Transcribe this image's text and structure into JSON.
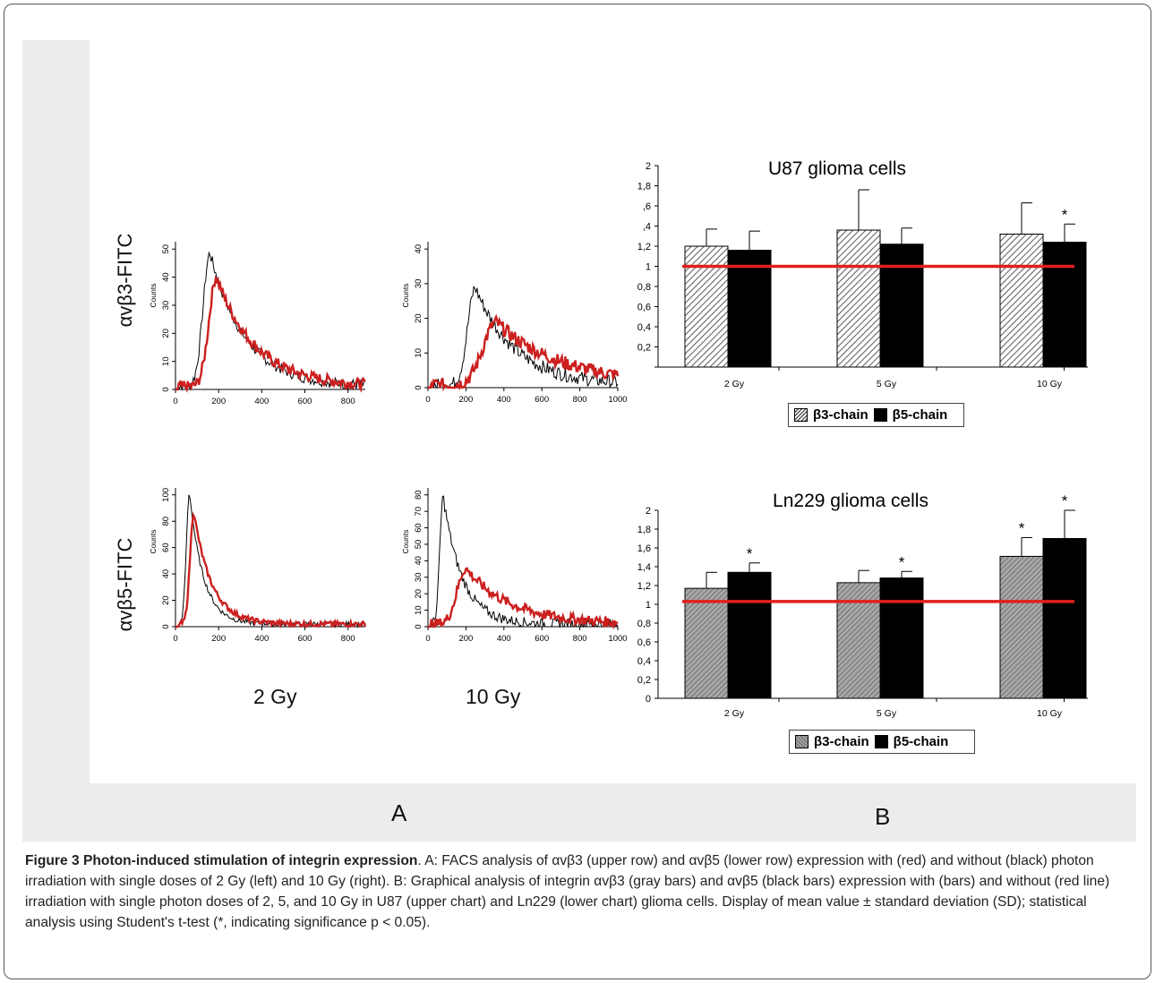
{
  "panel_labels": {
    "a": "A",
    "b": "B"
  },
  "row_labels": {
    "top": "αvβ3-FITC",
    "bottom": "αvβ5-FITC"
  },
  "dose_labels": {
    "left": "2 Gy",
    "right": "10 Gy"
  },
  "facs": {
    "ylabel": "Counts",
    "plots": [
      {
        "id": "top-2gy",
        "xticks": [
          "0",
          "200",
          "400",
          "600",
          "800"
        ],
        "yticks": [
          "0",
          "10",
          "20",
          "30",
          "40",
          "50"
        ]
      },
      {
        "id": "top-10gy",
        "xticks": [
          "0",
          "200",
          "400",
          "600",
          "800",
          "1000"
        ],
        "yticks": [
          "0",
          "10",
          "20",
          "30",
          "40"
        ]
      },
      {
        "id": "bottom-2gy",
        "xticks": [
          "0",
          "200",
          "400",
          "600",
          "800"
        ],
        "yticks": [
          "0",
          "20",
          "40",
          "60",
          "80",
          "100"
        ]
      },
      {
        "id": "bottom-10gy",
        "xticks": [
          "0",
          "200",
          "400",
          "600",
          "800",
          "1000"
        ],
        "yticks": [
          "0",
          "10",
          "20",
          "30",
          "40",
          "50",
          "60",
          "70",
          "80"
        ]
      }
    ]
  },
  "chart_data": [
    {
      "type": "bar",
      "title": "U87 glioma cells",
      "categories": [
        "2 Gy",
        "5 Gy",
        "10 Gy"
      ],
      "yticks": [
        "",
        "0,2",
        "0,4",
        "0,6",
        "0,8",
        "1",
        "1,2",
        ",4",
        ",6",
        "1,8",
        "2"
      ],
      "ylim": [
        0,
        2
      ],
      "reference_line": 1.0,
      "series": [
        {
          "name": "β3-chain",
          "values": [
            1.2,
            1.36,
            1.32
          ],
          "sd": [
            0.17,
            0.4,
            0.31
          ],
          "color": "#cccccc"
        },
        {
          "name": "β5-chain",
          "values": [
            1.16,
            1.22,
            1.24
          ],
          "sd": [
            0.19,
            0.16,
            0.18
          ],
          "color": "#000000"
        }
      ],
      "significance": [
        {
          "series": 1,
          "category": 2,
          "mark": "*"
        }
      ]
    },
    {
      "type": "bar",
      "title": "Ln229 glioma cells",
      "categories": [
        "2 Gy",
        "5 Gy",
        "10 Gy"
      ],
      "yticks": [
        "0",
        "0,2",
        "0,4",
        "0,6",
        "0,8",
        "1",
        "1,2",
        "1,4",
        "1,6",
        "1,8",
        "2"
      ],
      "ylim": [
        0,
        2
      ],
      "reference_line": 1.03,
      "series": [
        {
          "name": "β3-chain",
          "values": [
            1.17,
            1.23,
            1.51
          ],
          "sd": [
            0.17,
            0.13,
            0.2
          ],
          "color": "#8c8c8c"
        },
        {
          "name": "β5-chain",
          "values": [
            1.34,
            1.28,
            1.7
          ],
          "sd": [
            0.1,
            0.07,
            0.3
          ],
          "color": "#000000"
        }
      ],
      "significance": [
        {
          "series": 1,
          "category": 0,
          "mark": "*"
        },
        {
          "series": 1,
          "category": 1,
          "mark": "*"
        },
        {
          "series": 0,
          "category": 2,
          "mark": "*"
        },
        {
          "series": 1,
          "category": 2,
          "mark": "*"
        }
      ]
    }
  ],
  "caption": {
    "figure_label": "Figure 3 Photon-induced stimulation of integrin expression",
    "text": ". A: FACS analysis of αvβ3 (upper row) and αvβ5 (lower row) expression with (red) and without (black) photon irradiation with single doses of 2 Gy (left) and 10 Gy (right). B: Graphical analysis of integrin αvβ3 (gray bars) and αvβ5 (black bars) expression with (bars) and without (red line) irradiation with single photon doses of 2, 5, and 10 Gy in U87 (upper chart) and Ln229 (lower chart) glioma cells. Display of mean value ± standard deviation (SD); statistical analysis using Student's t-test (*, indicating significance p < 0.05)."
  }
}
